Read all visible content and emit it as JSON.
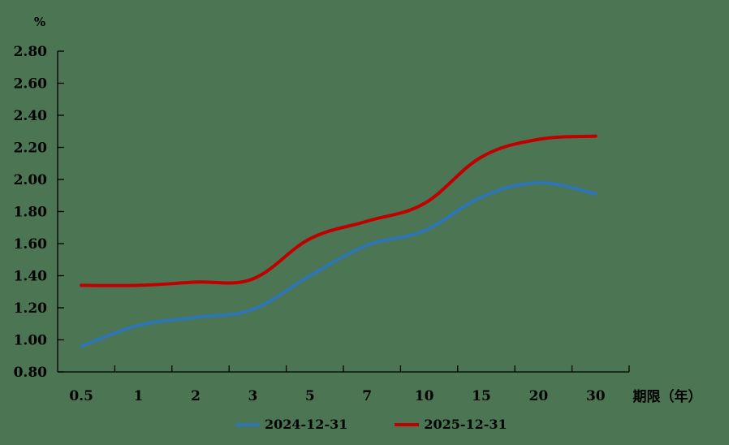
{
  "chart_data": {
    "type": "line",
    "title": "",
    "ylabel": "%",
    "xlabel": "期限（年）",
    "ylim": [
      0.8,
      2.8
    ],
    "yticks": [
      "2.80",
      "2.60",
      "2.40",
      "2.20",
      "2.00",
      "1.80",
      "1.60",
      "1.40",
      "1.20",
      "1.00",
      "0.80"
    ],
    "categories": [
      "0.5",
      "1",
      "2",
      "3",
      "5",
      "7",
      "10",
      "15",
      "20",
      "30"
    ],
    "grid": false,
    "legend_position": "bottom",
    "series": [
      {
        "name": "2024-12-31",
        "color": "#2e75b6",
        "values": [
          0.96,
          1.09,
          1.14,
          1.19,
          1.4,
          1.59,
          1.68,
          1.89,
          1.98,
          1.91
        ]
      },
      {
        "name": "2025-12-31",
        "color": "#c00000",
        "values": [
          1.34,
          1.34,
          1.36,
          1.38,
          1.63,
          1.74,
          1.85,
          2.14,
          2.25,
          2.27
        ]
      }
    ]
  },
  "labels": {
    "y_unit": "%",
    "x_title": "期限（年）",
    "x_ticks": [
      "0.5",
      "1",
      "2",
      "3",
      "5",
      "7",
      "10",
      "15",
      "20",
      "30"
    ],
    "y_ticks": [
      "2.80",
      "2.60",
      "2.40",
      "2.20",
      "2.00",
      "1.80",
      "1.60",
      "1.40",
      "1.20",
      "1.00",
      "0.80"
    ]
  },
  "legend": {
    "items": [
      {
        "label": "2024-12-31",
        "color": "#2e75b6"
      },
      {
        "label": "2025-12-31",
        "color": "#c00000"
      }
    ]
  }
}
